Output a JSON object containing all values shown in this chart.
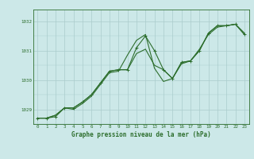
{
  "background_color": "#cce8e8",
  "grid_color": "#aacccc",
  "line_color": "#2d6e2d",
  "title": "Graphe pression niveau de la mer (hPa)",
  "xlim": [
    -0.5,
    23.5
  ],
  "ylim": [
    1028.5,
    1032.4
  ],
  "xticks": [
    0,
    1,
    2,
    3,
    4,
    5,
    6,
    7,
    8,
    9,
    10,
    11,
    12,
    13,
    14,
    15,
    16,
    17,
    18,
    19,
    20,
    21,
    22,
    23
  ],
  "yticks": [
    1029,
    1030,
    1031,
    1032
  ],
  "series1_x": [
    0,
    1,
    2,
    3,
    4,
    5,
    6,
    7,
    8,
    9,
    10,
    11,
    12,
    13,
    14,
    15,
    16,
    17,
    18,
    19,
    20,
    21,
    22,
    23
  ],
  "series1_y": [
    1028.7,
    1028.7,
    1028.75,
    1029.05,
    1029.05,
    1029.25,
    1029.5,
    1029.9,
    1030.3,
    1030.35,
    1030.35,
    1031.1,
    1031.5,
    1031.0,
    1030.35,
    1030.05,
    1030.6,
    1030.65,
    1031.0,
    1031.6,
    1031.85,
    1031.85,
    1031.9,
    1031.55
  ],
  "series2_y": [
    1028.7,
    1028.7,
    1028.8,
    1029.05,
    1029.05,
    1029.25,
    1029.5,
    1029.9,
    1030.3,
    1030.35,
    1030.35,
    1030.9,
    1031.05,
    1030.5,
    1030.35,
    1030.05,
    1030.6,
    1030.65,
    1031.0,
    1031.6,
    1031.85,
    1031.85,
    1031.9,
    1031.55
  ],
  "series3_y": [
    1028.7,
    1028.7,
    1028.8,
    1029.05,
    1029.0,
    1029.2,
    1029.45,
    1029.85,
    1030.25,
    1030.3,
    1030.85,
    1031.35,
    1031.55,
    1030.4,
    1029.95,
    1030.05,
    1030.55,
    1030.65,
    1031.05,
    1031.55,
    1031.8,
    1031.85,
    1031.9,
    1031.6
  ],
  "xlabel_fontsize": 5.5,
  "ylabel_fontsize": 5.5,
  "tick_fontsize": 4.2,
  "line_width": 0.8,
  "marker_size": 3.5
}
